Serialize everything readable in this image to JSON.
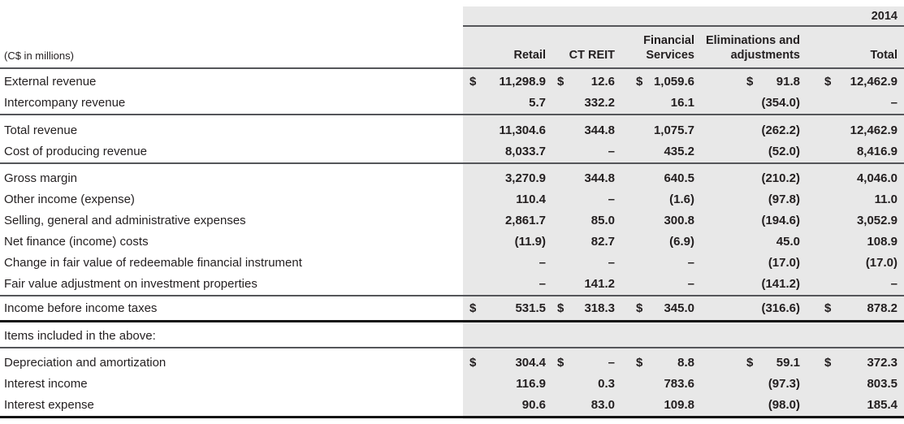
{
  "meta": {
    "year": "2014",
    "units": "(C$ in millions)"
  },
  "colors": {
    "band_bg": "#e8e8e8",
    "rule_medium": "#55565a",
    "rule_thick": "#131313",
    "text": "#231f20"
  },
  "columns": [
    {
      "key": "retail",
      "label": "Retail"
    },
    {
      "key": "ct-reit",
      "label": "CT REIT"
    },
    {
      "key": "financial-services",
      "label": "Financial Services"
    },
    {
      "key": "eliminations",
      "label": "Eliminations and adjustments"
    },
    {
      "key": "total",
      "label": "Total"
    }
  ],
  "groups": [
    {
      "rule_after": "medium",
      "rows": [
        {
          "label": "External revenue",
          "cells": [
            {
              "cur": "$",
              "val": "11,298.9"
            },
            {
              "cur": "$",
              "val": "12.6"
            },
            {
              "cur": "$",
              "val": "1,059.6"
            },
            {
              "cur": "$",
              "val": "91.8"
            },
            {
              "cur": "$",
              "val": "12,462.9"
            }
          ]
        },
        {
          "label": "Intercompany revenue",
          "cells": [
            {
              "cur": "",
              "val": "5.7"
            },
            {
              "cur": "",
              "val": "332.2"
            },
            {
              "cur": "",
              "val": "16.1"
            },
            {
              "cur": "",
              "val": "(354.0)"
            },
            {
              "cur": "",
              "val": "–"
            }
          ]
        }
      ]
    },
    {
      "rule_after": "medium",
      "rows": [
        {
          "label": "Total revenue",
          "cells": [
            {
              "cur": "",
              "val": "11,304.6"
            },
            {
              "cur": "",
              "val": "344.8"
            },
            {
              "cur": "",
              "val": "1,075.7"
            },
            {
              "cur": "",
              "val": "(262.2)"
            },
            {
              "cur": "",
              "val": "12,462.9"
            }
          ]
        },
        {
          "label": "Cost of producing revenue",
          "cells": [
            {
              "cur": "",
              "val": "8,033.7"
            },
            {
              "cur": "",
              "val": "–"
            },
            {
              "cur": "",
              "val": "435.2"
            },
            {
              "cur": "",
              "val": "(52.0)"
            },
            {
              "cur": "",
              "val": "8,416.9"
            }
          ]
        }
      ]
    },
    {
      "rule_after": "medium",
      "rows": [
        {
          "label": "Gross margin",
          "cells": [
            {
              "cur": "",
              "val": "3,270.9"
            },
            {
              "cur": "",
              "val": "344.8"
            },
            {
              "cur": "",
              "val": "640.5"
            },
            {
              "cur": "",
              "val": "(210.2)"
            },
            {
              "cur": "",
              "val": "4,046.0"
            }
          ]
        },
        {
          "label": "Other income (expense)",
          "cells": [
            {
              "cur": "",
              "val": "110.4"
            },
            {
              "cur": "",
              "val": "–"
            },
            {
              "cur": "",
              "val": "(1.6)"
            },
            {
              "cur": "",
              "val": "(97.8)"
            },
            {
              "cur": "",
              "val": "11.0"
            }
          ]
        },
        {
          "label": "Selling, general and administrative expenses",
          "cells": [
            {
              "cur": "",
              "val": "2,861.7"
            },
            {
              "cur": "",
              "val": "85.0"
            },
            {
              "cur": "",
              "val": "300.8"
            },
            {
              "cur": "",
              "val": "(194.6)"
            },
            {
              "cur": "",
              "val": "3,052.9"
            }
          ]
        },
        {
          "label": "Net finance (income) costs",
          "cells": [
            {
              "cur": "",
              "val": "(11.9)"
            },
            {
              "cur": "",
              "val": "82.7"
            },
            {
              "cur": "",
              "val": "(6.9)"
            },
            {
              "cur": "",
              "val": "45.0"
            },
            {
              "cur": "",
              "val": "108.9"
            }
          ]
        },
        {
          "label": "Change in fair value of redeemable financial instrument",
          "cells": [
            {
              "cur": "",
              "val": "–"
            },
            {
              "cur": "",
              "val": "–"
            },
            {
              "cur": "",
              "val": "–"
            },
            {
              "cur": "",
              "val": "(17.0)"
            },
            {
              "cur": "",
              "val": "(17.0)"
            }
          ]
        },
        {
          "label": "Fair value adjustment on investment properties",
          "cells": [
            {
              "cur": "",
              "val": "–"
            },
            {
              "cur": "",
              "val": "141.2"
            },
            {
              "cur": "",
              "val": "–"
            },
            {
              "cur": "",
              "val": "(141.2)"
            },
            {
              "cur": "",
              "val": "–"
            }
          ]
        }
      ]
    },
    {
      "rule_after": "thick",
      "rows": [
        {
          "label": "Income before income taxes",
          "cells": [
            {
              "cur": "$",
              "val": "531.5"
            },
            {
              "cur": "$",
              "val": "318.3"
            },
            {
              "cur": "$",
              "val": "345.0"
            },
            {
              "cur": "",
              "val": "(316.6)"
            },
            {
              "cur": "$",
              "val": "878.2"
            }
          ]
        }
      ]
    },
    {
      "rule_after": "medium",
      "rows": [
        {
          "label": "Items included in the above:",
          "cells": [
            {
              "cur": "",
              "val": ""
            },
            {
              "cur": "",
              "val": ""
            },
            {
              "cur": "",
              "val": ""
            },
            {
              "cur": "",
              "val": ""
            },
            {
              "cur": "",
              "val": ""
            }
          ]
        }
      ]
    },
    {
      "rule_after": "thick",
      "rows": [
        {
          "label": "Depreciation and amortization",
          "cells": [
            {
              "cur": "$",
              "val": "304.4"
            },
            {
              "cur": "$",
              "val": "–"
            },
            {
              "cur": "$",
              "val": "8.8"
            },
            {
              "cur": "$",
              "val": "59.1"
            },
            {
              "cur": "$",
              "val": "372.3"
            }
          ]
        },
        {
          "label": "Interest income",
          "cells": [
            {
              "cur": "",
              "val": "116.9"
            },
            {
              "cur": "",
              "val": "0.3"
            },
            {
              "cur": "",
              "val": "783.6"
            },
            {
              "cur": "",
              "val": "(97.3)"
            },
            {
              "cur": "",
              "val": "803.5"
            }
          ]
        },
        {
          "label": "Interest expense",
          "cells": [
            {
              "cur": "",
              "val": "90.6"
            },
            {
              "cur": "",
              "val": "83.0"
            },
            {
              "cur": "",
              "val": "109.8"
            },
            {
              "cur": "",
              "val": "(98.0)"
            },
            {
              "cur": "",
              "val": "185.4"
            }
          ]
        }
      ]
    }
  ]
}
